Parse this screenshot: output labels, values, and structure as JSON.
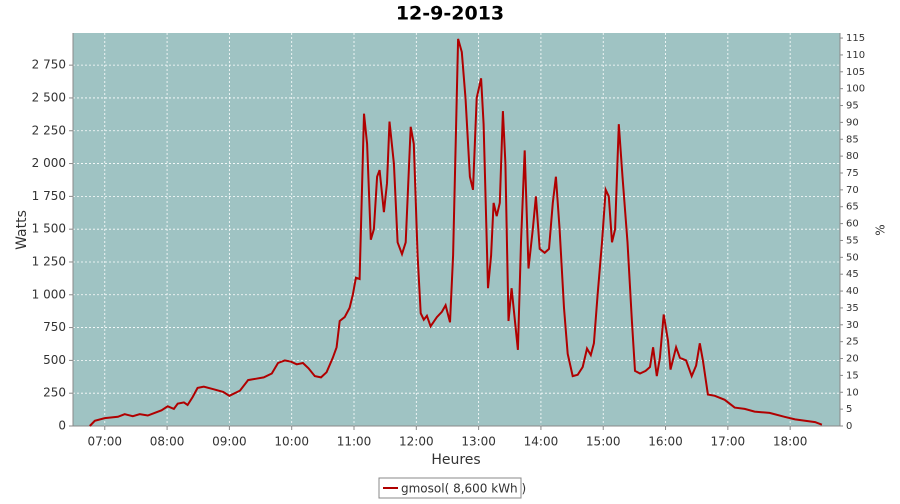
{
  "chart_data": {
    "type": "line",
    "title": "12-9-2013",
    "xlabel": "Heures",
    "ylabel": "Watts",
    "y2label": "%",
    "x": [
      6.76,
      6.84,
      7.0,
      7.21,
      7.32,
      7.45,
      7.56,
      7.69,
      7.8,
      7.91,
      8.01,
      8.11,
      8.17,
      8.27,
      8.33,
      8.41,
      8.49,
      8.59,
      8.75,
      8.9,
      9.0,
      9.17,
      9.3,
      9.42,
      9.55,
      9.68,
      9.78,
      9.89,
      9.99,
      10.08,
      10.18,
      10.27,
      10.37,
      10.47,
      10.56,
      10.66,
      10.72,
      10.77,
      10.85,
      10.93,
      10.98,
      11.03,
      11.09,
      11.16,
      11.21,
      11.27,
      11.32,
      11.37,
      11.41,
      11.48,
      11.53,
      11.57,
      11.64,
      11.7,
      11.77,
      11.83,
      11.91,
      11.96,
      12.02,
      12.07,
      12.12,
      12.17,
      12.23,
      12.33,
      12.41,
      12.47,
      12.54,
      12.59,
      12.67,
      12.73,
      12.79,
      12.86,
      12.91,
      12.97,
      13.04,
      13.08,
      13.15,
      13.2,
      13.24,
      13.29,
      13.34,
      13.39,
      13.43,
      13.48,
      13.53,
      13.63,
      13.68,
      13.74,
      13.8,
      13.87,
      13.92,
      13.98,
      14.06,
      14.13,
      14.19,
      14.24,
      14.3,
      14.37,
      14.43,
      14.51,
      14.59,
      14.67,
      14.74,
      14.8,
      14.85,
      14.91,
      14.98,
      15.04,
      15.09,
      15.14,
      15.19,
      15.25,
      15.31,
      15.39,
      15.46,
      15.51,
      15.59,
      15.68,
      15.75,
      15.8,
      15.86,
      15.91,
      15.97,
      16.04,
      16.08,
      16.17,
      16.23,
      16.33,
      16.42,
      16.49,
      16.55,
      16.6,
      16.68,
      16.79,
      16.95,
      17.11,
      17.27,
      17.43,
      17.67,
      17.91,
      18.08,
      18.24,
      18.4,
      18.51
    ],
    "series": [
      {
        "name": "gmosol( 8,600 kWh )",
        "color": "#b00000",
        "values": [
          0,
          40,
          60,
          70,
          90,
          75,
          90,
          80,
          100,
          120,
          150,
          130,
          170,
          180,
          160,
          220,
          290,
          300,
          280,
          260,
          230,
          270,
          350,
          360,
          370,
          400,
          480,
          500,
          490,
          470,
          480,
          440,
          380,
          370,
          410,
          520,
          600,
          800,
          830,
          900,
          1000,
          1130,
          1120,
          2380,
          2150,
          1420,
          1500,
          1900,
          1950,
          1630,
          1850,
          2320,
          2000,
          1400,
          1310,
          1400,
          2280,
          2150,
          1300,
          860,
          810,
          840,
          760,
          830,
          870,
          920,
          790,
          1300,
          2950,
          2850,
          2500,
          1900,
          1800,
          2500,
          2650,
          2300,
          1050,
          1300,
          1700,
          1600,
          1700,
          2400,
          2000,
          800,
          1050,
          580,
          1400,
          2100,
          1200,
          1500,
          1750,
          1350,
          1320,
          1350,
          1700,
          1900,
          1500,
          900,
          550,
          380,
          390,
          450,
          590,
          540,
          630,
          1000,
          1400,
          1800,
          1750,
          1400,
          1500,
          2300,
          1900,
          1400,
          800,
          420,
          400,
          420,
          450,
          600,
          380,
          520,
          850,
          650,
          430,
          600,
          520,
          500,
          380,
          460,
          630,
          500,
          240,
          230,
          200,
          140,
          130,
          110,
          100,
          70,
          50,
          40,
          30,
          10
        ]
      }
    ],
    "xlim": [
      6.49,
      18.8
    ],
    "xticks": [
      {
        "value": 7,
        "label": "07:00"
      },
      {
        "value": 8,
        "label": "08:00"
      },
      {
        "value": 9,
        "label": "09:00"
      },
      {
        "value": 10,
        "label": "10:00"
      },
      {
        "value": 11,
        "label": "11:00"
      },
      {
        "value": 12,
        "label": "12:00"
      },
      {
        "value": 13,
        "label": "13:00"
      },
      {
        "value": 14,
        "label": "14:00"
      },
      {
        "value": 15,
        "label": "15:00"
      },
      {
        "value": 16,
        "label": "16:00"
      },
      {
        "value": 17,
        "label": "17:00"
      },
      {
        "value": 18,
        "label": "18:00"
      }
    ],
    "ylim": [
      0,
      2995
    ],
    "yticks": [
      0,
      250,
      500,
      750,
      {
        "value": 1000,
        "label": "1 000"
      },
      {
        "value": 1250,
        "label": "1 250"
      },
      {
        "value": 1500,
        "label": "1 500"
      },
      {
        "value": 1750,
        "label": "1 750"
      },
      {
        "value": 2000,
        "label": "2 000"
      },
      {
        "value": 2250,
        "label": "2 250"
      },
      {
        "value": 2500,
        "label": "2 500"
      },
      {
        "value": 2750,
        "label": "2 750"
      }
    ],
    "y2lim": [
      0,
      116.5
    ],
    "y2ticks": [
      0,
      5,
      10,
      15,
      20,
      25,
      30,
      35,
      40,
      45,
      50,
      55,
      60,
      65,
      70,
      75,
      80,
      85,
      90,
      95,
      100,
      105,
      110,
      115
    ],
    "grid": true,
    "background": "#9fc3c3"
  }
}
